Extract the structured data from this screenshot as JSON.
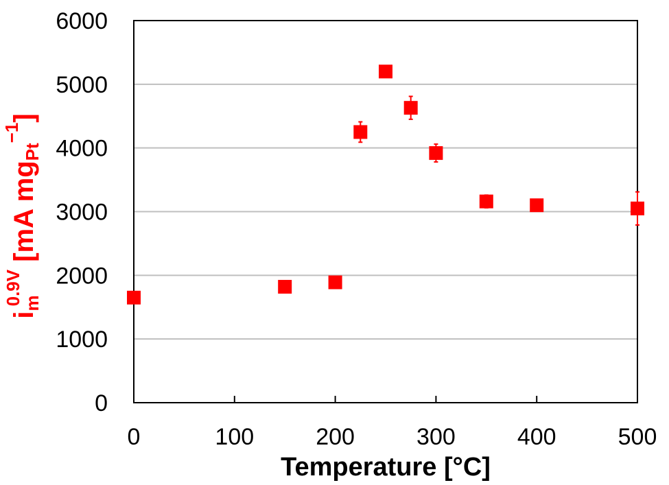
{
  "chart_data": {
    "type": "scatter",
    "xlabel": "Temperature [°C]",
    "ylabel": {
      "base": "i",
      "sub": "m",
      "sup": "0.9V",
      "mid": " [mA mg",
      "sub2": "Pt",
      "sup2": "−1",
      "end": "]"
    },
    "xlim": [
      0,
      500
    ],
    "ylim": [
      0,
      6000
    ],
    "x_ticks": [
      0,
      100,
      200,
      300,
      400,
      500
    ],
    "y_ticks": [
      0,
      1000,
      2000,
      3000,
      4000,
      5000,
      6000
    ],
    "x_tick_labels": [
      "0",
      "100",
      "200",
      "300",
      "400",
      "500"
    ],
    "y_tick_labels": [
      "0",
      "1000",
      "2000",
      "3000",
      "4000",
      "5000",
      "6000"
    ],
    "grid": "horizontal",
    "marker": "square",
    "series": [
      {
        "x": [
          0,
          150,
          200,
          225,
          250,
          275,
          300,
          350,
          400,
          500
        ],
        "y": [
          1650,
          1820,
          1890,
          4250,
          5200,
          4630,
          3920,
          3160,
          3100,
          3050
        ],
        "yerr": [
          50,
          40,
          40,
          160,
          50,
          180,
          140,
          100,
          40,
          260
        ]
      }
    ],
    "colors": {
      "marker": "#ff0000",
      "ylabel": "#ff0000",
      "grid": "#bfbfbf",
      "axis": "#000000"
    }
  }
}
